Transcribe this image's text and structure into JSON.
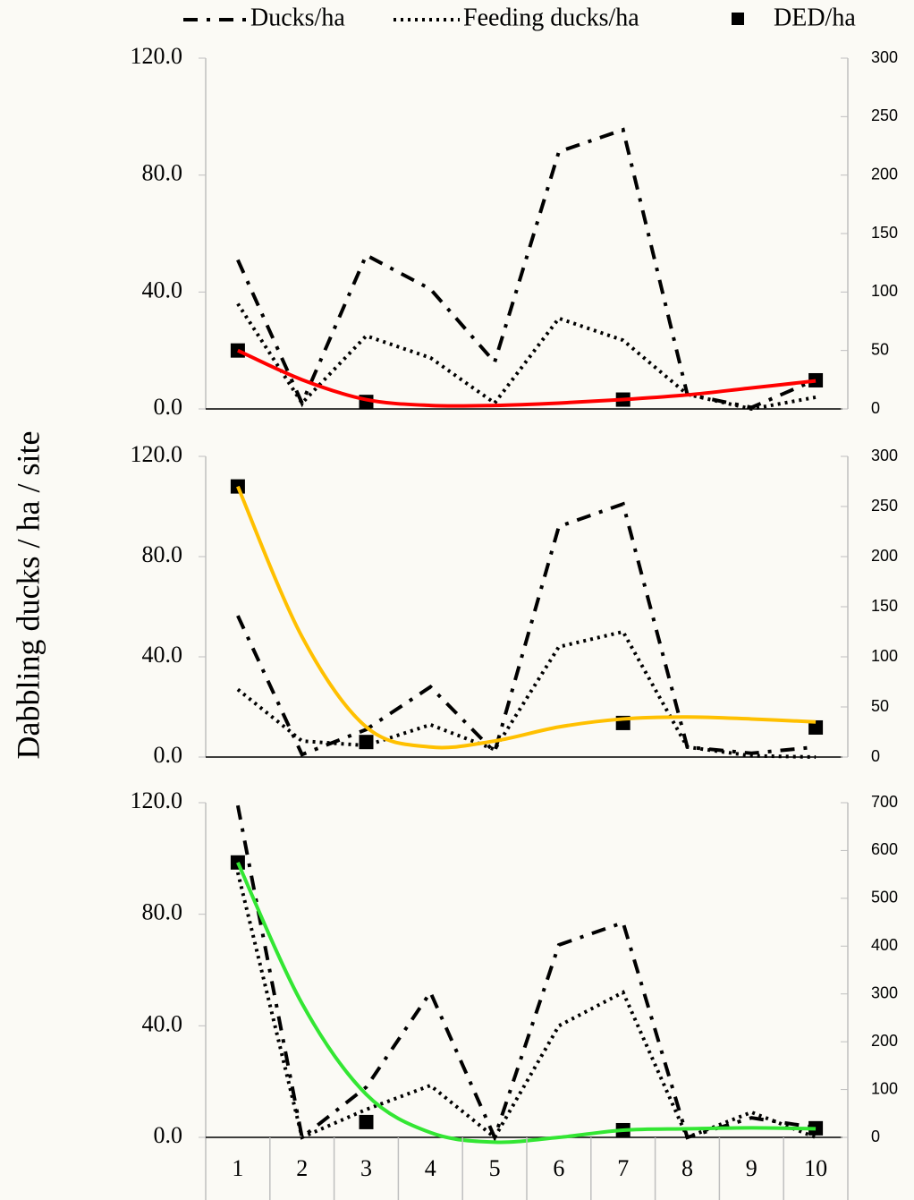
{
  "chart_data": [
    {
      "type": "line",
      "ylabel": "Dabbling ducks / ha / site",
      "ylim": [
        0,
        120
      ],
      "yticks": [
        {
          "value": 0,
          "label": "0.0"
        },
        {
          "value": 40,
          "label": "40.0"
        },
        {
          "value": 80,
          "label": "80.0"
        },
        {
          "value": 120,
          "label": "120.0"
        }
      ],
      "y2lim": [
        0,
        300
      ],
      "y2ticks": [
        0,
        50,
        100,
        150,
        200,
        250,
        300
      ],
      "series": [
        {
          "name": "Ducks/ha",
          "color": "#000000",
          "style": "dashdot",
          "values": [
            51,
            2,
            52.6,
            41,
            16,
            88,
            95.5,
            5,
            0.5,
            10
          ]
        },
        {
          "name": "Feeding ducks/ha",
          "color": "#000000",
          "style": "dotted",
          "values": [
            36,
            2,
            25,
            17.5,
            2,
            31,
            23.5,
            5,
            0,
            4
          ]
        },
        {
          "name": "DED/ha",
          "color": "#000000",
          "style": "square",
          "axis": "y2",
          "values": [
            50,
            null,
            6,
            null,
            null,
            null,
            8,
            null,
            null,
            24.5
          ]
        }
      ],
      "trend": {
        "color": "#ff0000",
        "axis": "y2",
        "values": [
          50,
          25,
          8,
          3,
          3,
          5,
          8,
          12,
          18,
          24
        ]
      }
    },
    {
      "type": "line",
      "ylim": [
        0,
        120
      ],
      "yticks": [
        {
          "value": 0,
          "label": "0.0"
        },
        {
          "value": 40,
          "label": "40.0"
        },
        {
          "value": 80,
          "label": "80.0"
        },
        {
          "value": 120,
          "label": "120.0"
        }
      ],
      "y2lim": [
        0,
        300
      ],
      "y2ticks": [
        0,
        50,
        100,
        150,
        200,
        250,
        300
      ],
      "series": [
        {
          "color": "#000000",
          "style": "dashdot",
          "values": [
            56.4,
            1,
            11,
            28,
            2,
            92,
            101,
            4,
            1.5,
            4
          ]
        },
        {
          "color": "#000000",
          "style": "dotted",
          "values": [
            27,
            6.4,
            4.6,
            12.9,
            3,
            44,
            50,
            4,
            0.5,
            0
          ]
        },
        {
          "color": "#000000",
          "style": "square",
          "axis": "y2",
          "values": [
            270,
            null,
            15,
            null,
            null,
            null,
            34,
            null,
            null,
            29.5
          ]
        }
      ],
      "trend": {
        "color": "#ffc000",
        "axis": "y2",
        "values": [
          270,
          120,
          30,
          10,
          16,
          30,
          38,
          40,
          38,
          35
        ]
      }
    },
    {
      "type": "line",
      "categories": [
        "1",
        "2",
        "3",
        "4",
        "5",
        "6",
        "7",
        "8",
        "9",
        "10"
      ],
      "ylim": [
        0,
        120
      ],
      "yticks": [
        {
          "value": 0,
          "label": "0.0"
        },
        {
          "value": 40,
          "label": "40.0"
        },
        {
          "value": 80,
          "label": "80.0"
        },
        {
          "value": 120,
          "label": "120.0"
        }
      ],
      "y2lim": [
        0,
        700
      ],
      "y2ticks": [
        0,
        100,
        200,
        300,
        400,
        500,
        600,
        700
      ],
      "series": [
        {
          "color": "#000000",
          "style": "dashdot",
          "values": [
            119,
            0,
            18,
            52,
            0,
            69,
            77,
            0,
            7,
            3.5
          ]
        },
        {
          "color": "#000000",
          "style": "dotted",
          "values": [
            95,
            0,
            10,
            18.6,
            0,
            40,
            52,
            0,
            9,
            0
          ]
        },
        {
          "color": "#000000",
          "style": "square",
          "axis": "y2",
          "values": [
            575,
            null,
            32,
            null,
            null,
            null,
            15,
            null,
            null,
            19
          ]
        }
      ],
      "trend": {
        "color": "#33e633",
        "axis": "y2",
        "values": [
          575,
          280,
          90,
          10,
          -10,
          0,
          15,
          18,
          20,
          18
        ]
      }
    }
  ]
}
